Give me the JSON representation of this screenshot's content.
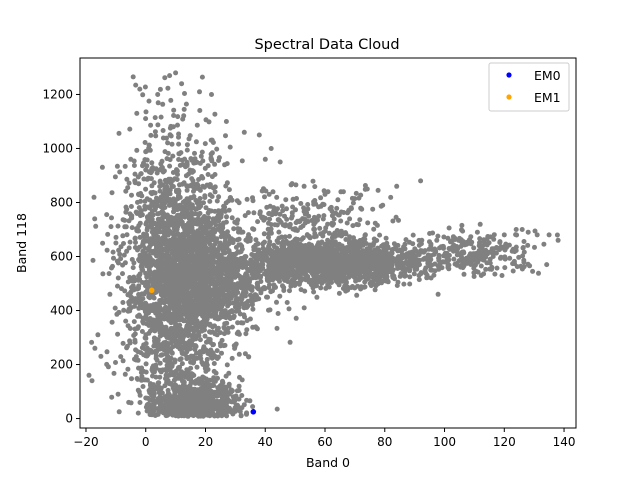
{
  "chart_data": {
    "type": "scatter",
    "title": "Spectral Data Cloud",
    "xlabel": "Band 0",
    "ylabel": "Band 118",
    "xlim": [
      -22,
      144
    ],
    "ylim": [
      -35,
      1335
    ],
    "xticks": [
      -20,
      0,
      20,
      40,
      60,
      80,
      100,
      120,
      140
    ],
    "yticks": [
      0,
      200,
      400,
      600,
      800,
      1000,
      1200
    ],
    "grid": false,
    "legend_position": "top-right",
    "cloud": {
      "color": "#808080",
      "clusters": [
        {
          "n": 2200,
          "cx": 10,
          "cy": 520,
          "sx": 9,
          "sy": 250,
          "xmin": -19,
          "xmax": 45,
          "ymin": 20,
          "ymax": 1285
        },
        {
          "n": 900,
          "cx": 16,
          "cy": 45,
          "sx": 8,
          "sy": 45,
          "xmin": 0,
          "xmax": 36,
          "ymin": 8,
          "ymax": 240
        },
        {
          "n": 1200,
          "cx": 20,
          "cy": 520,
          "sx": 10,
          "sy": 110,
          "xmin": 0,
          "xmax": 60,
          "ymin": 250,
          "ymax": 800
        },
        {
          "n": 1800,
          "cx": 62,
          "cy": 575,
          "sx": 14,
          "sy": 38,
          "xmin": 35,
          "xmax": 100,
          "ymin": 420,
          "ymax": 760
        },
        {
          "n": 300,
          "cx": 108,
          "cy": 610,
          "sx": 12,
          "sy": 40,
          "xmin": 85,
          "xmax": 138,
          "ymin": 520,
          "ymax": 720
        },
        {
          "n": 250,
          "cx": 55,
          "cy": 720,
          "sx": 14,
          "sy": 70,
          "xmin": 30,
          "xmax": 95,
          "ymin": 600,
          "ymax": 880
        }
      ],
      "points": [
        [
          -18,
          140
        ],
        [
          -19,
          160
        ],
        [
          -17,
          260
        ],
        [
          -15,
          230
        ],
        [
          -16,
          310
        ],
        [
          -12,
          460
        ],
        [
          -10,
          650
        ],
        [
          -7,
          710
        ],
        [
          -5,
          960
        ],
        [
          -3,
          1130
        ],
        [
          -2,
          1220
        ],
        [
          4,
          1200
        ],
        [
          8,
          1270
        ],
        [
          10,
          1280
        ],
        [
          12,
          1240
        ],
        [
          18,
          1210
        ],
        [
          22,
          1200
        ],
        [
          27,
          1100
        ],
        [
          33,
          1060
        ],
        [
          38,
          1050
        ],
        [
          40,
          960
        ],
        [
          42,
          1000
        ],
        [
          45,
          950
        ],
        [
          49,
          870
        ],
        [
          53,
          860
        ],
        [
          60,
          830
        ],
        [
          84,
          860
        ],
        [
          92,
          880
        ],
        [
          111,
          690
        ],
        [
          120,
          680
        ],
        [
          124,
          700
        ],
        [
          126,
          700
        ],
        [
          128,
          690
        ],
        [
          131,
          680
        ],
        [
          135,
          680
        ],
        [
          138,
          660
        ],
        [
          44,
          35
        ],
        [
          45,
          560
        ]
      ]
    },
    "series": [
      {
        "name": "EM0",
        "color": "#0000ff",
        "points": [
          [
            36,
            25
          ]
        ]
      },
      {
        "name": "EM1",
        "color": "#ffa500",
        "points": [
          [
            2,
            475
          ]
        ]
      }
    ]
  }
}
